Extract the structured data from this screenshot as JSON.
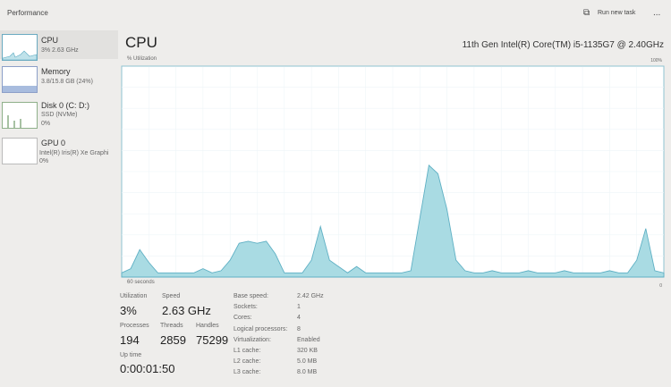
{
  "header": {
    "title": "Performance",
    "action": "Run new task",
    "more": "..."
  },
  "sidebar": [
    {
      "name": "CPU",
      "detail": "3% 2.63 GHz"
    },
    {
      "name": "Memory",
      "detail": "3.8/15.8 GB (24%)"
    },
    {
      "name": "Disk 0 (C: D:)",
      "detail": "SSD (NVMe)",
      "detail2": "0%"
    },
    {
      "name": "GPU 0",
      "detail": "Intel(R) Iris(R) Xe Graphi",
      "detail2": "0%"
    }
  ],
  "main": {
    "title": "CPU",
    "processor": "11th Gen Intel(R) Core(TM) i5-1135G7 @ 2.40GHz",
    "graph": {
      "label": "% Utilization",
      "time_label": "60 seconds",
      "ylim": [
        0,
        100
      ],
      "yticks": [
        0,
        {
          "value": 100,
          "label": "100%"
        }
      ],
      "values": [
        2,
        4,
        13,
        7,
        2,
        2,
        2,
        2,
        2,
        4,
        2,
        3,
        8,
        16,
        17,
        16,
        17,
        11,
        2,
        2,
        2,
        8,
        24,
        8,
        5,
        2,
        5,
        2,
        2,
        2,
        2,
        2,
        3,
        28,
        53,
        49,
        32,
        8,
        3,
        2,
        2,
        3,
        2,
        2,
        2,
        3,
        2,
        2,
        2,
        3,
        2,
        2,
        2,
        2,
        3,
        2,
        2,
        8,
        23,
        3,
        2
      ]
    },
    "stats": [
      {
        "label": "Utilization",
        "value": "3%"
      },
      {
        "label": "Speed",
        "value": "2.63 GHz"
      },
      {
        "label": "Processes",
        "value": "194"
      },
      {
        "label": "Threads",
        "value": "2859"
      },
      {
        "label": "Handles",
        "value": "75299"
      },
      {
        "label": "Up time",
        "value": "0:00:01:50"
      }
    ],
    "specs": [
      [
        "Base speed:",
        "2.42 GHz"
      ],
      [
        "Sockets:",
        "1"
      ],
      [
        "Cores:",
        "4"
      ],
      [
        "Logical processors:",
        "8"
      ],
      [
        "Virtualization:",
        "Enabled"
      ],
      [
        "L1 cache:",
        "320 KB"
      ],
      [
        "L2 cache:",
        "5.0 MB"
      ],
      [
        "L3 cache:",
        "8.0 MB"
      ]
    ]
  }
}
